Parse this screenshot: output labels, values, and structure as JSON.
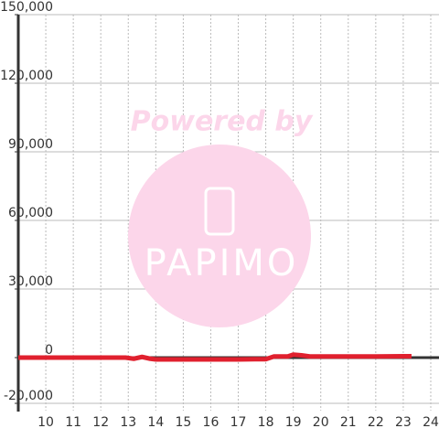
{
  "chart_data": {
    "type": "line",
    "watermark": {
      "title": "Powered by",
      "logo": "PAPIMO"
    },
    "xlim": [
      9,
      24.3
    ],
    "xticks": [
      10,
      11,
      12,
      13,
      14,
      15,
      16,
      17,
      18,
      19,
      20,
      21,
      22,
      23,
      24
    ],
    "ylim": [
      -20000,
      150000
    ],
    "yticks": [
      {
        "value": -20000,
        "label": "-20,000"
      },
      0,
      {
        "value": 30000,
        "label": "30,000"
      },
      {
        "value": 60000,
        "label": "60,000"
      },
      {
        "value": 90000,
        "label": "90,000"
      },
      {
        "value": 120000,
        "label": "120,000"
      },
      {
        "value": 150000,
        "label": "150,000"
      }
    ],
    "grid": true,
    "series": [
      {
        "color": "#e0202e",
        "x": [
          9,
          10,
          11,
          12,
          12.9,
          13.2,
          13.5,
          13.8,
          14,
          15,
          16,
          17,
          17.6,
          18,
          18.3,
          18.8,
          19,
          19.3,
          19.6,
          20,
          21,
          22,
          23,
          23.3
        ],
        "values": [
          0,
          0,
          0,
          0,
          0,
          -500,
          300,
          -500,
          -800,
          -800,
          -800,
          -800,
          -700,
          -700,
          500,
          500,
          1300,
          1000,
          500,
          500,
          500,
          500,
          600,
          600
        ]
      }
    ]
  }
}
